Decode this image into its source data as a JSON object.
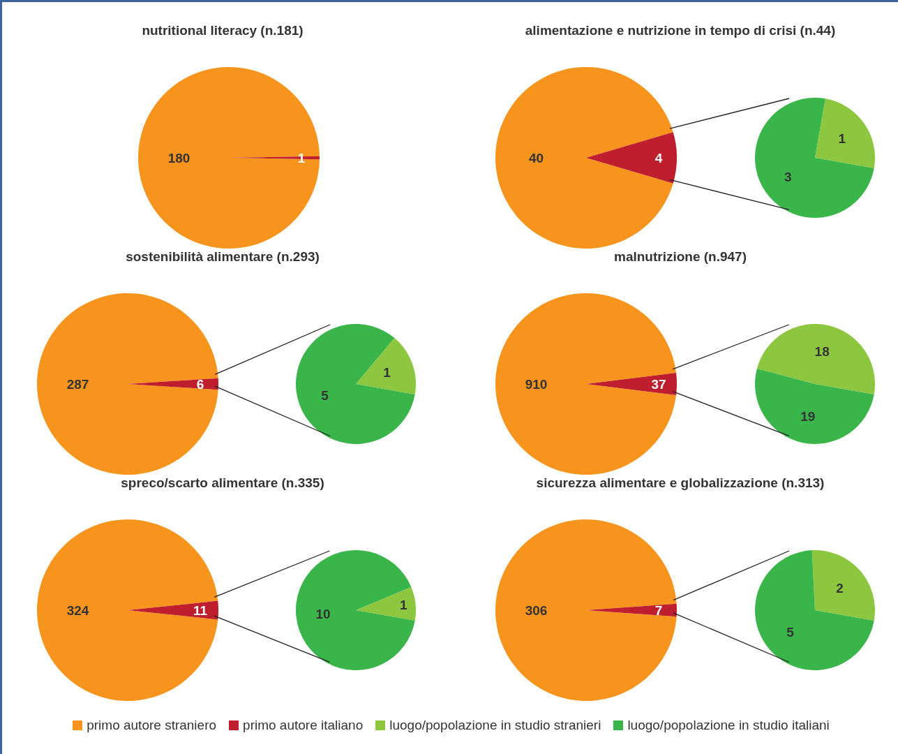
{
  "chart_data": [
    {
      "type": "pie",
      "title": "nutritional literacy (n.181)",
      "categories": [
        "primo autore straniero",
        "primo autore italiano"
      ],
      "values": [
        180,
        1
      ],
      "colors": [
        "#f7941d",
        "#be1e2d"
      ],
      "data_labels": true,
      "legend": "bottom"
    },
    {
      "type": "pie",
      "title": "alimentazione e nutrizione in tempo di crisi (n.44)",
      "categories": [
        null,
        null
      ],
      "values": [
        40,
        4
      ],
      "colors": [
        "#f7941d",
        "#be1e2d"
      ],
      "data_labels": true
    },
    {
      "type": "pie",
      "categories": [
        "luogo/popolazione in studio stranieri",
        "luogo/popolazione in studio italiani"
      ],
      "values": [
        1,
        3
      ],
      "colors": [
        "#8dc63f",
        "#39b54a"
      ],
      "data_labels": true,
      "legend": "bottom"
    },
    {
      "type": "pie",
      "title": "sostenibilità alimentare (n.293)",
      "categories": [
        null,
        null
      ],
      "values": [
        287,
        6
      ],
      "colors": [
        "#f7941d",
        "#be1e2d"
      ],
      "data_labels": true
    },
    {
      "type": "pie",
      "categories": [
        null,
        null
      ],
      "values": [
        1,
        5
      ],
      "colors": [
        "#8dc63f",
        "#39b54a"
      ],
      "data_labels": true
    },
    {
      "type": "pie",
      "title": "malnutrizione (n.947)",
      "categories": [
        null,
        null
      ],
      "values": [
        910,
        37
      ],
      "colors": [
        "#f7941d",
        "#be1e2d"
      ],
      "data_labels": true
    },
    {
      "type": "pie",
      "categories": [
        null,
        null
      ],
      "values": [
        18,
        19
      ],
      "colors": [
        "#8dc63f",
        "#39b54a"
      ],
      "data_labels": true
    },
    {
      "type": "pie",
      "title": "spreco/scarto alimentare (n.335)",
      "categories": [
        null,
        null
      ],
      "values": [
        324,
        11
      ],
      "colors": [
        "#f7941d",
        "#be1e2d"
      ],
      "data_labels": true
    },
    {
      "type": "pie",
      "categories": [
        null,
        null
      ],
      "values": [
        1,
        10
      ],
      "colors": [
        "#8dc63f",
        "#39b54a"
      ],
      "data_labels": true
    },
    {
      "type": "pie",
      "title": "sicurezza alimentare e globalizzazione (n.313)",
      "categories": [
        null,
        null
      ],
      "values": [
        306,
        7
      ],
      "colors": [
        "#f7941d",
        "#be1e2d"
      ],
      "data_labels": true
    },
    {
      "type": "pie",
      "categories": [
        null,
        null
      ],
      "values": [
        2,
        5
      ],
      "colors": [
        "#8dc63f",
        "#39b54a"
      ],
      "data_labels": true
    }
  ]
}
